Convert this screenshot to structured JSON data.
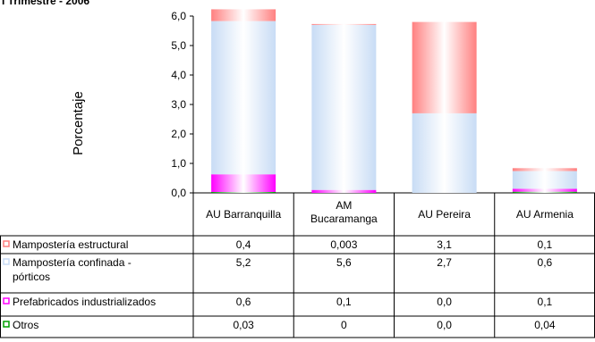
{
  "title": "I Trimestre - 2006",
  "colors": {
    "mamposteria_estructural": "#ff8080",
    "mamposteria_confinada": "#c8dcf5",
    "prefabricados": "#ff00ff",
    "otros": "#00a000"
  },
  "chart_data": {
    "type": "bar",
    "stacked": true,
    "title": "I Trimestre - 2006",
    "ylabel": "Porcentaje",
    "xlabel": "",
    "ylim": [
      0,
      6
    ],
    "yticks": [
      "0,0",
      "1,0",
      "2,0",
      "3,0",
      "4,0",
      "5,0",
      "6,0"
    ],
    "categories": [
      "AU Barranquilla",
      "AM Bucaramanga",
      "AU Pereira",
      "AU Armenia"
    ],
    "category_labels": [
      [
        "AU Barranquilla"
      ],
      [
        "AM",
        "Bucaramanga"
      ],
      [
        "AU Pereira"
      ],
      [
        "AU Armenia"
      ]
    ],
    "series": [
      {
        "name": "Mampostería estructural",
        "values": [
          0.4,
          0.003,
          3.1,
          0.1
        ],
        "display": [
          "0,4",
          "0,003",
          "3,1",
          "0,1"
        ],
        "color": "#ff8080"
      },
      {
        "name": "Mampostería confinada - pórticos",
        "label_lines": [
          "Mampostería confinada -",
          "pórticos"
        ],
        "values": [
          5.2,
          5.6,
          2.7,
          0.6
        ],
        "display": [
          "5,2",
          "5,6",
          "2,7",
          "0,6"
        ],
        "color": "#c8dcf5"
      },
      {
        "name": "Prefabricados industrializados",
        "values": [
          0.6,
          0.1,
          0.0,
          0.1
        ],
        "display": [
          "0,6",
          "0,1",
          "0,0",
          "0,1"
        ],
        "color": "#ff00ff"
      },
      {
        "name": "Otros",
        "values": [
          0.03,
          0,
          0.0,
          0.04
        ],
        "display": [
          "0,03",
          "0",
          "0,0",
          "0,04"
        ],
        "color": "#00a000"
      }
    ],
    "stack_order": [
      3,
      2,
      1,
      0
    ],
    "legend_position": "data-table"
  }
}
